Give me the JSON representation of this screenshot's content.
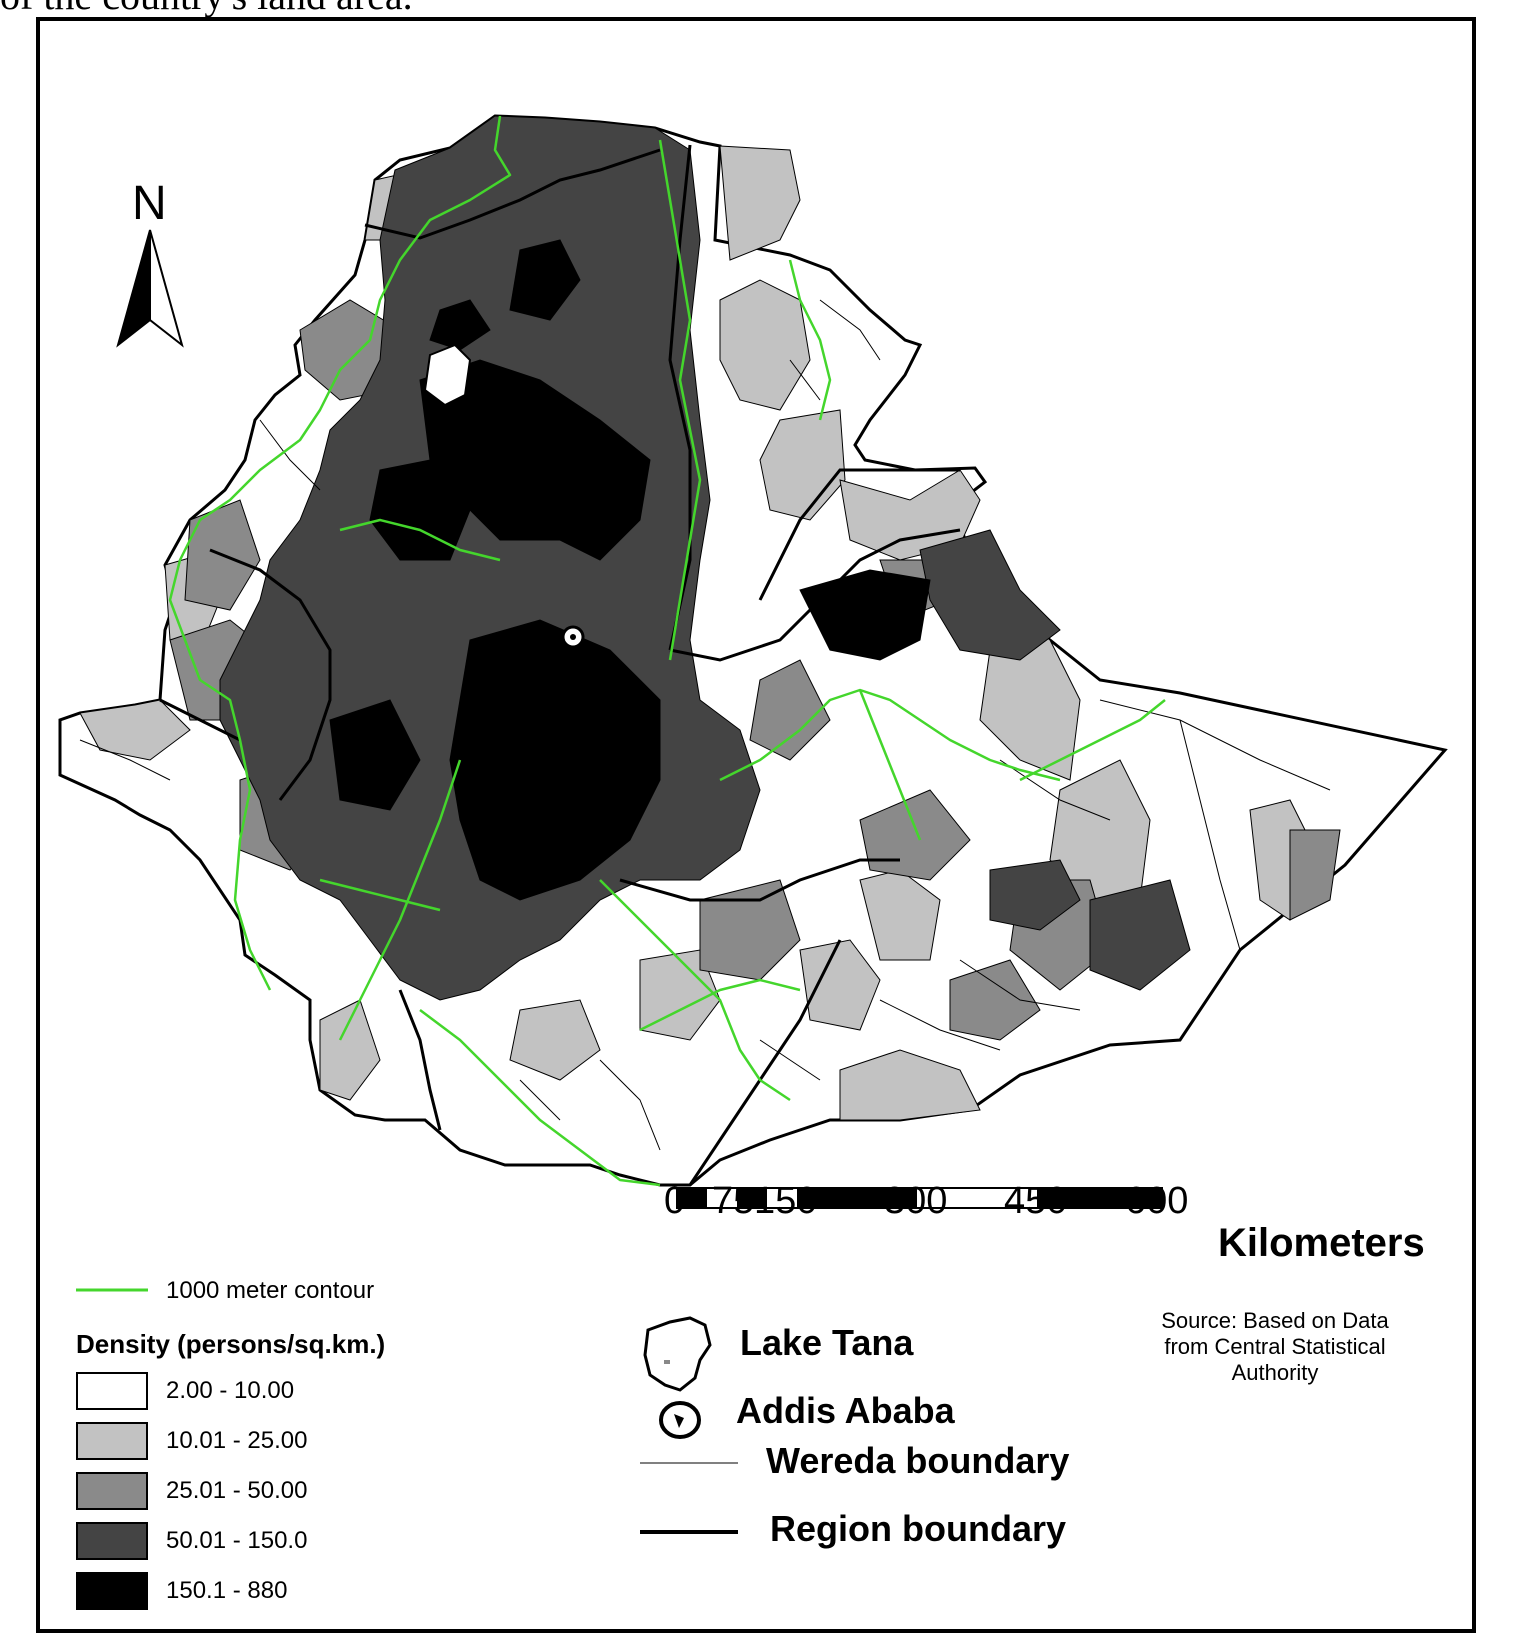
{
  "caption": {
    "partial_text": "of the country's land area."
  },
  "map": {
    "north_arrow_label": "N",
    "colors": {
      "contour": "#44d62c",
      "class_1": "#ffffff",
      "class_2": "#c2c2c2",
      "class_3": "#8a8a8a",
      "class_4": "#444444",
      "class_5": "#000000"
    }
  },
  "scale_bar": {
    "ticks": [
      "0",
      "75",
      "150",
      "300",
      "450",
      "600"
    ],
    "unit": "Kilometers"
  },
  "legend": {
    "contour_label": "1000 meter contour",
    "density_title": "Density (persons/sq.km.)",
    "classes": [
      {
        "label": "2.00 - 10.00",
        "color": "#ffffff"
      },
      {
        "label": "10.01 - 25.00",
        "color": "#c2c2c2"
      },
      {
        "label": "25.01 - 50.00",
        "color": "#8a8a8a"
      },
      {
        "label": "50.01 - 150.0",
        "color": "#444444"
      },
      {
        "label": "150.1 - 880",
        "color": "#000000"
      }
    ]
  },
  "source": {
    "line1": "Source: Based on Data",
    "line2": "from Central Statistical",
    "line3": "Authority"
  },
  "symbols": {
    "lake_tana": "Lake Tana",
    "addis_ababa": "Addis Ababa",
    "wereda_boundary": "Wereda boundary",
    "region_boundary": "Region boundary"
  }
}
